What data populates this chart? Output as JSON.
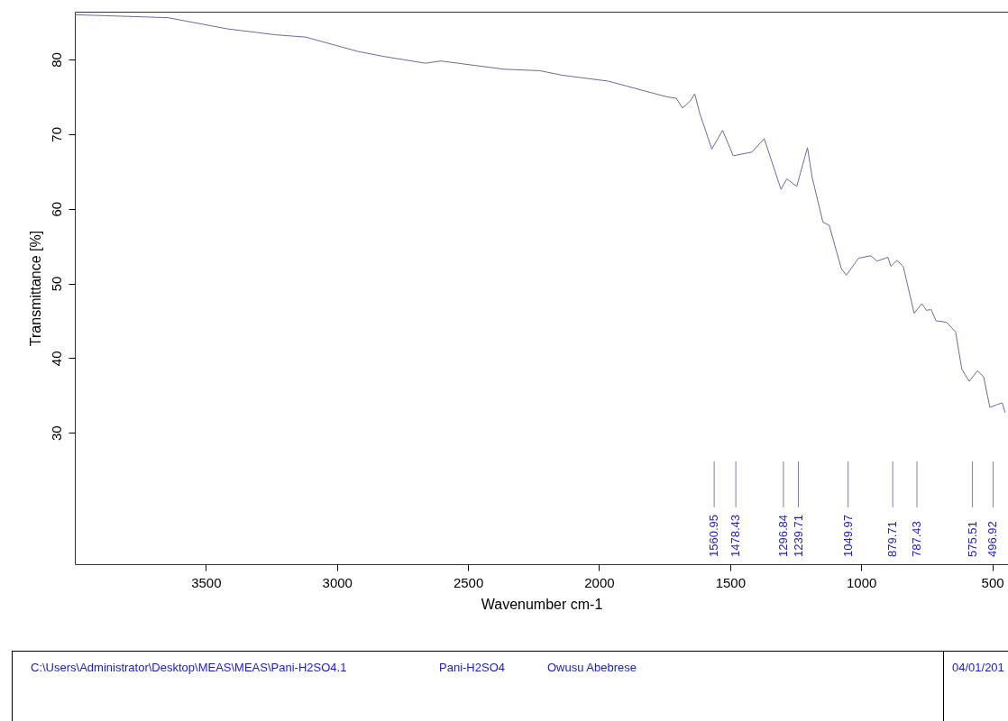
{
  "chart_data": {
    "type": "line",
    "xlabel": "Wavenumber cm-1",
    "ylabel": "Transmittance [%]",
    "xlim": [
      4000,
      440
    ],
    "ylim": [
      12.4,
      86.4
    ],
    "xticks": [
      3500,
      3000,
      2500,
      2000,
      1500,
      1000,
      500
    ],
    "yticks": [
      30,
      40,
      50,
      60,
      70,
      80
    ],
    "grid": false,
    "line_style": "solid",
    "series": [
      {
        "color": "#6b6b9e",
        "x": [
          3999,
          3644,
          3418,
          3232,
          3119,
          2923,
          2820,
          2662,
          2604,
          2363,
          2226,
          2142,
          1965,
          1742,
          1705,
          1682,
          1653,
          1635,
          1617,
          1570,
          1529,
          1488,
          1417,
          1370,
          1306,
          1284,
          1246,
          1205,
          1187,
          1146,
          1122,
          1076,
          1057,
          1010,
          963,
          940,
          898,
          887,
          863,
          839,
          798,
          769,
          751,
          733,
          715,
          674,
          640,
          616,
          588,
          557,
          533,
          509,
          480,
          462,
          451
        ],
        "values": [
          86.0,
          85.6,
          84.1,
          83.3,
          83.0,
          81.1,
          80.4,
          79.5,
          79.8,
          78.7,
          78.5,
          77.9,
          77.1,
          75.0,
          74.8,
          73.5,
          74.4,
          75.4,
          72.9,
          68.0,
          70.5,
          67.1,
          67.6,
          69.4,
          62.6,
          64.0,
          63.0,
          68.2,
          64.2,
          58.2,
          57.8,
          52.0,
          51.1,
          53.4,
          53.7,
          53.0,
          53.5,
          52.3,
          53.1,
          52.2,
          46.0,
          47.3,
          46.4,
          46.5,
          45.0,
          44.8,
          43.5,
          38.5,
          36.9,
          38.3,
          37.5,
          33.4,
          33.8,
          34.0,
          32.7
        ]
      }
    ],
    "ref_lines": [
      {
        "axis": "x",
        "value": 1560.95,
        "label": "1560.95",
        "color": "#8080b0"
      },
      {
        "axis": "x",
        "value": 1478.43,
        "label": "1478.43",
        "color": "#8080b0"
      },
      {
        "axis": "x",
        "value": 1296.84,
        "label": "1296.84",
        "color": "#8080b0"
      },
      {
        "axis": "x",
        "value": 1239.71,
        "label": "1239.71",
        "color": "#8080b0"
      },
      {
        "axis": "x",
        "value": 1049.97,
        "label": "1049.97",
        "color": "#8080b0"
      },
      {
        "axis": "x",
        "value": 879.71,
        "label": "879.71",
        "color": "#8080b0"
      },
      {
        "axis": "x",
        "value": 787.43,
        "label": "787.43",
        "color": "#8080b0"
      },
      {
        "axis": "x",
        "value": 575.51,
        "label": "575.51",
        "color": "#8080b0"
      },
      {
        "axis": "x",
        "value": 496.92,
        "label": "496.92",
        "color": "#8080b0"
      }
    ],
    "annotations": [
      "C:\\Users\\Administrator\\Desktop\\MEAS\\MEAS\\Pani-H2SO4.1",
      "Pani-H2SO4",
      "Owusu Abebrese",
      "04/01/201"
    ]
  }
}
